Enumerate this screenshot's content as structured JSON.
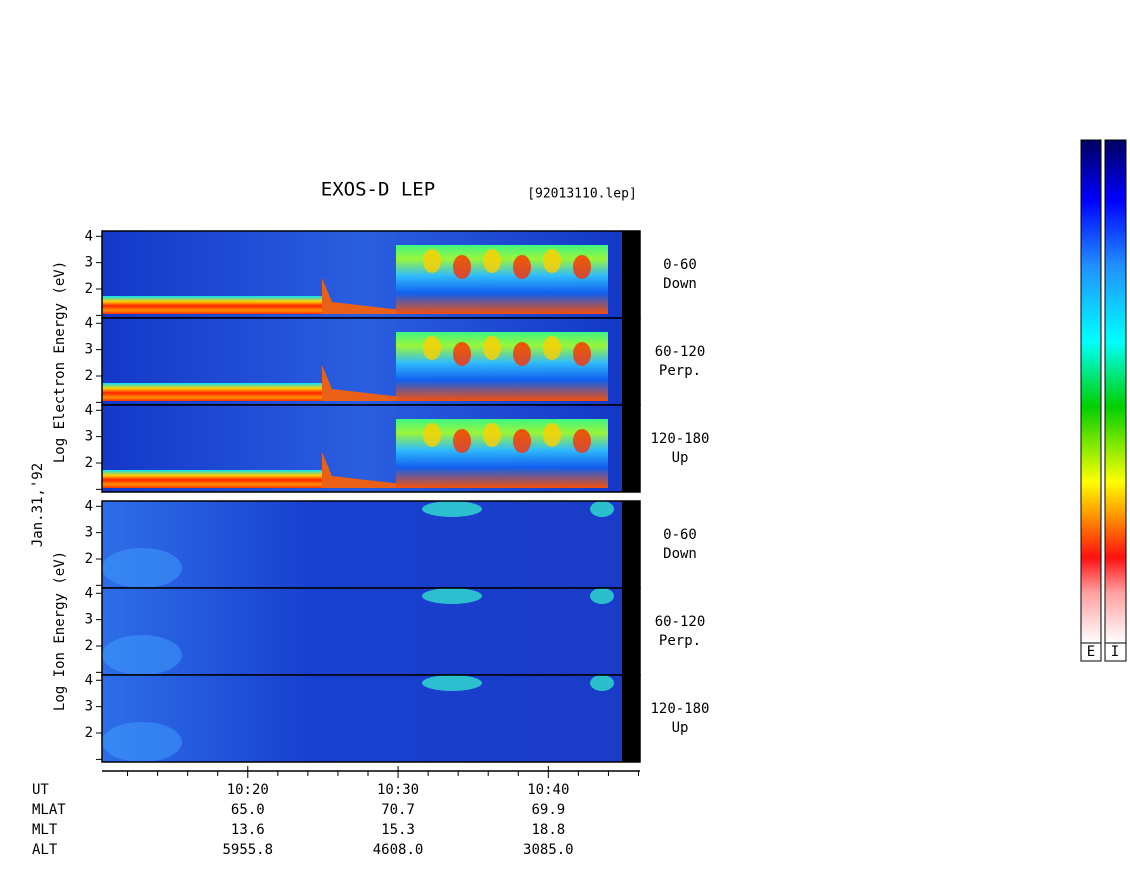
{
  "title": "EXOS-D LEP",
  "file_label": "[92013110.lep]",
  "date_label": "Jan.31,'92",
  "group_axis_labels": [
    "Log  Electron  Energy (eV)",
    "Log  Ion  Energy (eV)"
  ],
  "chart_data": [
    {
      "type": "spectrogram",
      "group": 0,
      "ylim": [
        0.9,
        4.2
      ],
      "yticks": [
        2,
        3,
        4
      ],
      "yminorticks": [
        1
      ],
      "pitch_angle": "0-60",
      "direction": "Down"
    },
    {
      "type": "spectrogram",
      "group": 0,
      "ylim": [
        0.9,
        4.2
      ],
      "yticks": [
        2,
        3,
        4
      ],
      "yminorticks": [
        1
      ],
      "pitch_angle": "60-120",
      "direction": "Perp."
    },
    {
      "type": "spectrogram",
      "group": 0,
      "ylim": [
        0.9,
        4.2
      ],
      "yticks": [
        2,
        3,
        4
      ],
      "yminorticks": [
        1
      ],
      "pitch_angle": "120-180",
      "direction": "Up"
    },
    {
      "type": "spectrogram",
      "group": 1,
      "ylim": [
        0.9,
        4.2
      ],
      "yticks": [
        2,
        3,
        4
      ],
      "yminorticks": [
        1
      ],
      "pitch_angle": "0-60",
      "direction": "Down"
    },
    {
      "type": "spectrogram",
      "group": 1,
      "ylim": [
        0.9,
        4.2
      ],
      "yticks": [
        2,
        3,
        4
      ],
      "yminorticks": [
        1
      ],
      "pitch_angle": "60-120",
      "direction": "Perp."
    },
    {
      "type": "spectrogram",
      "group": 1,
      "ylim": [
        0.9,
        4.2
      ],
      "yticks": [
        2,
        3,
        4
      ],
      "yminorticks": [
        1
      ],
      "pitch_angle": "120-180",
      "direction": "Up"
    }
  ],
  "time_axis": {
    "xlim": [
      610.3,
      646.1
    ],
    "xticks": [
      {
        "value": 620,
        "label": "10:20"
      },
      {
        "value": 630,
        "label": "10:30"
      },
      {
        "value": 640,
        "label": "10:40"
      }
    ],
    "xminorticks": [
      612,
      614,
      616,
      618,
      622,
      624,
      626,
      628,
      632,
      634,
      636,
      638,
      642,
      644,
      646
    ]
  },
  "ephemeris": [
    {
      "label": "UT"
    },
    {
      "label": "MLAT",
      "values": [
        "65.0",
        "70.7",
        "69.9"
      ]
    },
    {
      "label": "MLT",
      "values": [
        "13.6",
        "15.3",
        "18.8"
      ]
    },
    {
      "label": "ALT",
      "values": [
        "5955.8",
        "4608.0",
        "3085.0"
      ]
    }
  ],
  "colorbar_labels": [
    "E",
    "I"
  ]
}
